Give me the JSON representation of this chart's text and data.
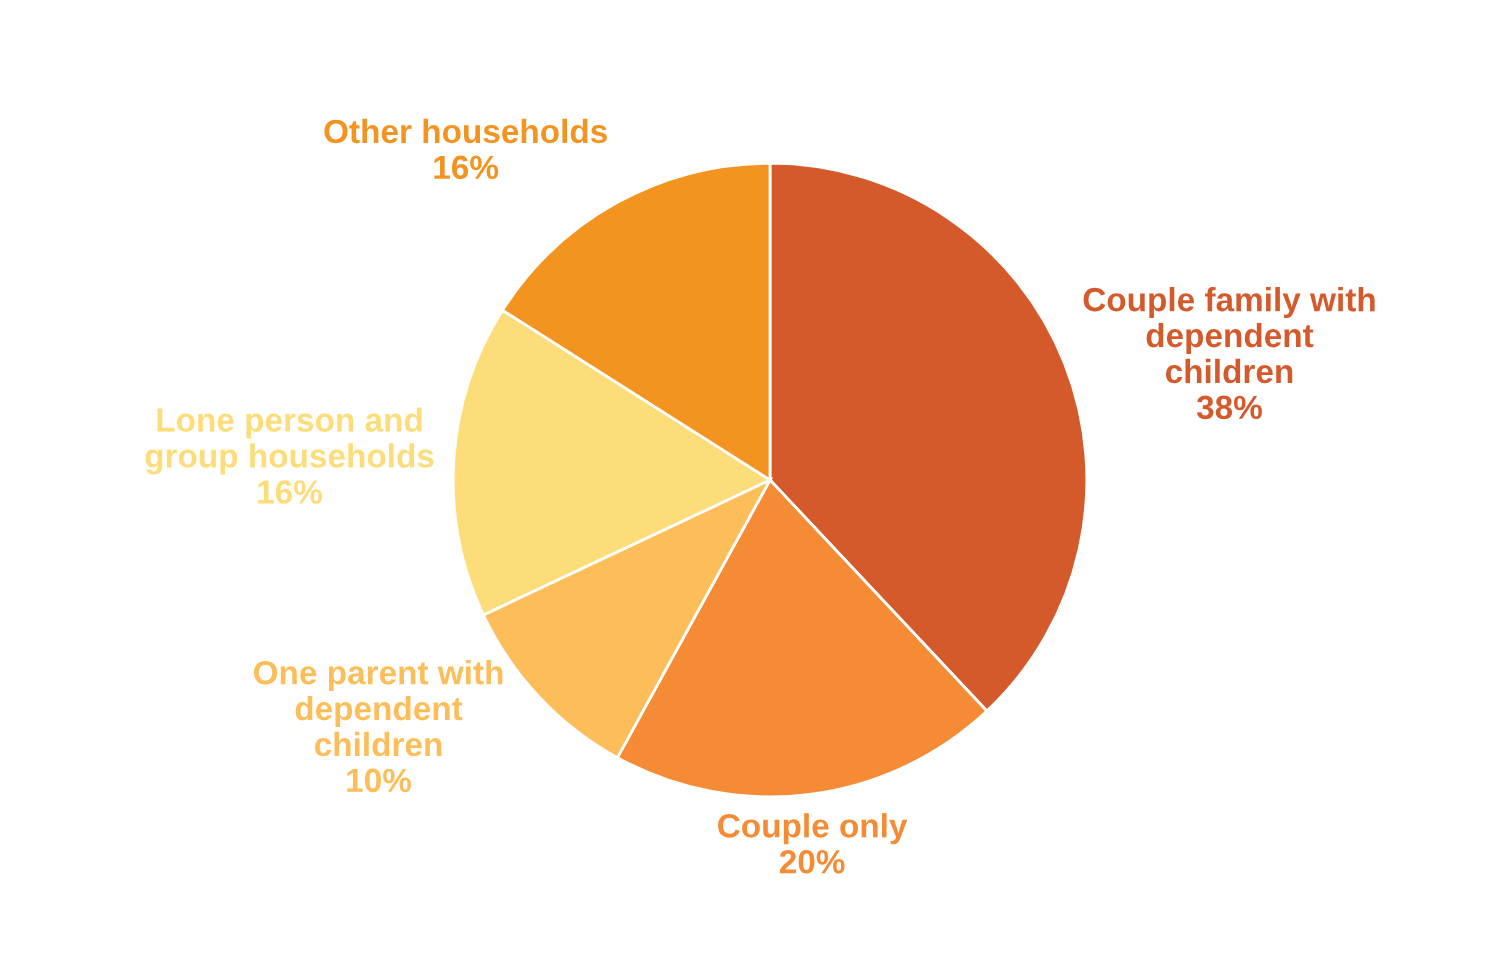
{
  "chart_data": {
    "type": "pie",
    "categories": [
      "Couple family with\ndependent\nchildren",
      "Couple only",
      "One parent with\ndependent\nchildren",
      "Lone person and\ngroup households",
      "Other households"
    ],
    "values": [
      38,
      20,
      10,
      16,
      16
    ],
    "value_labels": [
      "38%",
      "20%",
      "10%",
      "16%",
      "16%"
    ],
    "colors": [
      "#d55a2b",
      "#f58b35",
      "#fdbe5a",
      "#fddd7a",
      "#f39421"
    ]
  }
}
